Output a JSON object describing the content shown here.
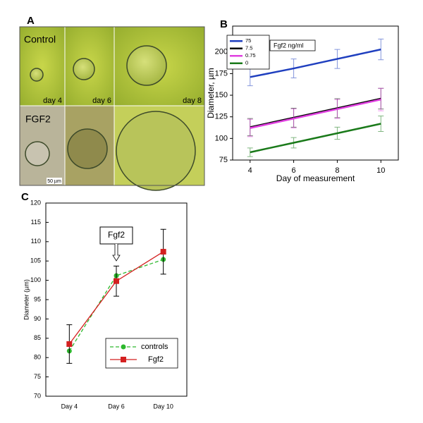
{
  "panel_a": {
    "label": "A",
    "top_row": "Control",
    "bottom_row": "FGF2",
    "days": [
      "day 4",
      "day 6",
      "day 8"
    ],
    "scale_bar": "50 µm"
  },
  "chart_data": [
    {
      "type": "line",
      "panel_label": "B",
      "x_label": "Day of measurement",
      "y_label": "Diameter, µm",
      "legend_title": "Fgf2 ng/ml",
      "legend": "upper left",
      "x": [
        4,
        6,
        8,
        10
      ],
      "xlim": [
        3.2,
        10.8
      ],
      "xticks": [
        4,
        6,
        8,
        10
      ],
      "ylim": [
        75,
        230
      ],
      "yticks": [
        75,
        100,
        125,
        150,
        175,
        200
      ],
      "series": [
        {
          "name": "75",
          "color": "#1f3fbf",
          "values": [
            171,
            181,
            192,
            203
          ],
          "errors": [
            10,
            11,
            11,
            12
          ]
        },
        {
          "name": "7.5",
          "color": "#000000",
          "values": [
            113,
            124,
            135,
            146
          ],
          "errors": [
            10,
            11,
            11,
            12
          ]
        },
        {
          "name": "0.75",
          "color": "#e040e0",
          "values": [
            112,
            123,
            134,
            145
          ],
          "errors": [
            10,
            11,
            11,
            13
          ]
        },
        {
          "name": "0",
          "color": "#1a7a1a",
          "values": [
            84,
            95,
            106,
            117
          ],
          "errors": [
            5,
            6,
            7,
            9
          ]
        }
      ]
    },
    {
      "type": "line",
      "panel_label": "C",
      "y_label": "Diameter (µm)",
      "legend": "lower right",
      "annotation": "Fgf2",
      "categories": [
        "Day 4",
        "Day 6",
        "Day 10"
      ],
      "ylim": [
        70,
        120
      ],
      "yticks": [
        70,
        75,
        80,
        85,
        90,
        95,
        100,
        105,
        110,
        115,
        120
      ],
      "series": [
        {
          "name": "controls",
          "color": "#2db82d",
          "dashed": true,
          "marker": "circle",
          "values": [
            81.7,
            101.2,
            105.4
          ]
        },
        {
          "name": "Fgf2",
          "color": "#d42020",
          "marker": "square",
          "values": [
            83.5,
            99.8,
            107.4
          ],
          "errors": [
            5,
            3.9,
            5.8
          ]
        }
      ]
    }
  ]
}
